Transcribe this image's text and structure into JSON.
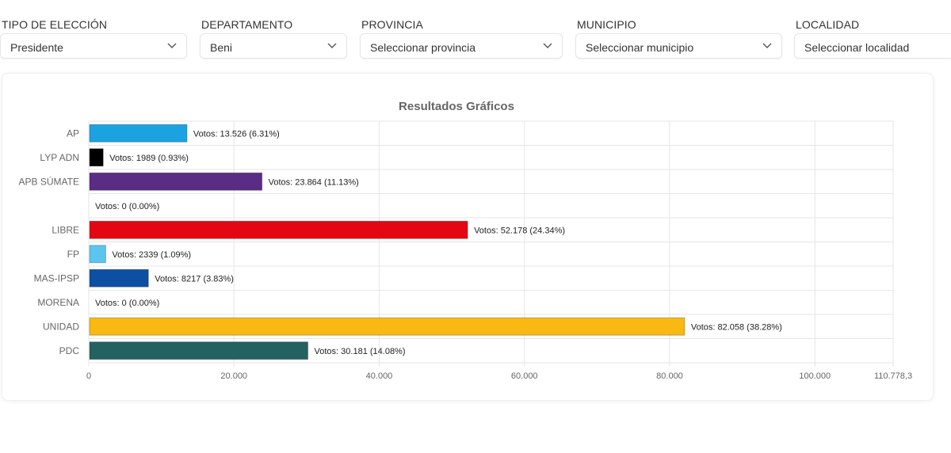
{
  "filters": [
    {
      "label": "TIPO DE ELECCIÓN",
      "value": "Presidente"
    },
    {
      "label": "DEPARTAMENTO",
      "value": "Beni"
    },
    {
      "label": "PROVINCIA",
      "value": "Seleccionar provincia"
    },
    {
      "label": "MUNICIPIO",
      "value": "Seleccionar municipio"
    },
    {
      "label": "LOCALIDAD",
      "value": "Seleccionar localidad"
    }
  ],
  "chart_data": {
    "type": "bar",
    "orientation": "horizontal",
    "title": "Resultados Gráficos",
    "categories": [
      "AP",
      "LYP ADN",
      "APB SÚMATE",
      "",
      "LIBRE",
      "FP",
      "MAS-IPSP",
      "MORENA",
      "UNIDAD",
      "PDC"
    ],
    "values": [
      13526,
      1989,
      23864,
      0,
      52178,
      2339,
      8217,
      0,
      82058,
      30181
    ],
    "data_labels": [
      "Votos: 13.526 (6.31%)",
      "Votos: 1989 (0.93%)",
      "Votos: 23.864 (11.13%)",
      "Votos: 0 (0.00%)",
      "Votos: 52.178 (24.34%)",
      "Votos: 2339 (1.09%)",
      "Votos: 8217 (3.83%)",
      "Votos: 0 (0.00%)",
      "Votos: 82.058 (38.28%)",
      "Votos: 30.181 (14.08%)"
    ],
    "colors": [
      "#1aa3e0",
      "#000000",
      "#5b2c83",
      "#cccccc",
      "#e30613",
      "#5bc5ef",
      "#0d4fa3",
      "#8b1a1a",
      "#f9b912",
      "#23625e"
    ],
    "x_ticks": [
      0,
      20000,
      40000,
      60000,
      80000,
      100000,
      110778.3
    ],
    "x_tick_labels": [
      "0",
      "20.000",
      "40.000",
      "60.000",
      "80.000",
      "100.000",
      "110.778,3"
    ],
    "xlim": [
      0,
      110778.3
    ],
    "grid": true,
    "legend": "none"
  }
}
